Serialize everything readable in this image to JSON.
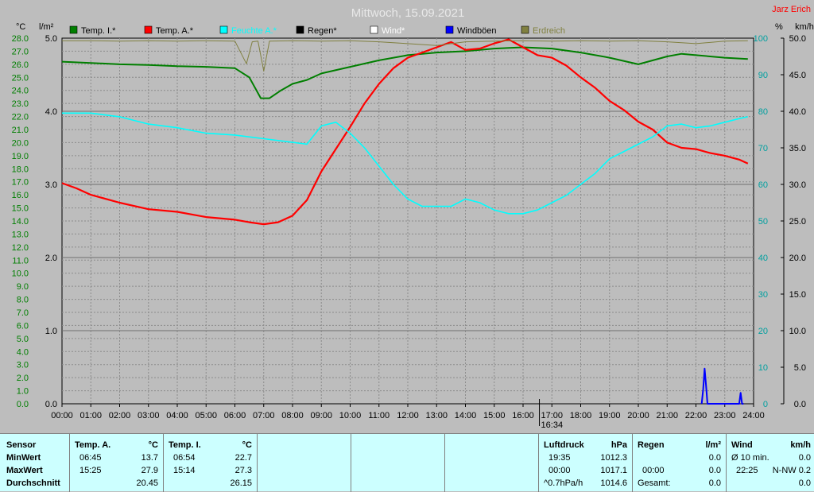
{
  "header": {
    "title": "Mittwoch, 15.09.2021",
    "author": "Jarz Erich",
    "unit_temp": "°C",
    "unit_rain": "l/m²",
    "unit_pct": "%",
    "unit_wind": "km/h",
    "time_marker": "16:34"
  },
  "colors": {
    "background": "#bdbdbd",
    "grid": "#8c8c8c",
    "temp_i": "#007f00",
    "temp_a": "#ff0000",
    "feuchte": "#00ffff",
    "regen": "#000000",
    "wind": "#ffffff",
    "windboeen": "#0000ff",
    "erdreich": "#808040",
    "axis_temp": "#007f00",
    "axis_pct": "#00a0a0",
    "axis_wind": "#000000",
    "title": "#e8e8e8",
    "author": "#ff0000"
  },
  "chart_data": {
    "type": "line",
    "x_unit": "hours",
    "xlim": [
      0,
      24
    ],
    "x_ticks": [
      "00:00",
      "01:00",
      "02:00",
      "03:00",
      "04:00",
      "05:00",
      "06:00",
      "07:00",
      "08:00",
      "09:00",
      "10:00",
      "11:00",
      "12:00",
      "13:00",
      "14:00",
      "15:00",
      "16:00",
      "17:00",
      "18:00",
      "19:00",
      "20:00",
      "21:00",
      "22:00",
      "23:00",
      "24:00"
    ],
    "axes": {
      "temp": {
        "label": "°C",
        "min": 0,
        "max": 28,
        "ticks": [
          "0.0",
          "1.0",
          "2.0",
          "3.0",
          "4.0",
          "5.0",
          "6.0",
          "7.0",
          "8.0",
          "9.0",
          "10.0",
          "11.0",
          "12.0",
          "13.0",
          "14.0",
          "15.0",
          "16.0",
          "17.0",
          "18.0",
          "19.0",
          "20.0",
          "21.0",
          "22.0",
          "23.0",
          "24.0",
          "25.0",
          "26.0",
          "27.0",
          "28.0"
        ]
      },
      "rain": {
        "label": "l/m²",
        "min": 0,
        "max": 5,
        "ticks": [
          "0.0",
          "1.0",
          "2.0",
          "3.0",
          "4.0",
          "5.0"
        ]
      },
      "pct": {
        "label": "%",
        "min": 0,
        "max": 100,
        "ticks": [
          "0",
          "10",
          "20",
          "30",
          "40",
          "50",
          "60",
          "70",
          "80",
          "90",
          "100"
        ]
      },
      "wind": {
        "label": "km/h",
        "min": 0,
        "max": 50,
        "ticks": [
          "0.0",
          "5.0",
          "10.0",
          "15.0",
          "20.0",
          "25.0",
          "30.0",
          "35.0",
          "40.0",
          "45.0",
          "50.0"
        ]
      }
    },
    "legend": [
      {
        "name": "Temp. I.*",
        "color": "#007f00"
      },
      {
        "name": "Temp. A.*",
        "color": "#ff0000"
      },
      {
        "name": "Feuchte A.*",
        "color": "#00ffff"
      },
      {
        "name": "Regen*",
        "color": "#000000"
      },
      {
        "name": "Wind*",
        "color": "#ffffff"
      },
      {
        "name": "Windböen",
        "color": "#0000ff"
      },
      {
        "name": "Erdreich",
        "color": "#808040"
      }
    ],
    "series": [
      {
        "name": "Temp. I.*",
        "axis": "temp",
        "color": "#007f00",
        "x": [
          0,
          1,
          2,
          3,
          4,
          5,
          6,
          6.5,
          6.9,
          7.2,
          7.6,
          8,
          8.5,
          9,
          10,
          11,
          12,
          13,
          14,
          15,
          16,
          17,
          18,
          19,
          20,
          21,
          21.5,
          22,
          23,
          23.8
        ],
        "y": [
          26.2,
          26.1,
          26.0,
          25.95,
          25.85,
          25.8,
          25.7,
          25.0,
          23.4,
          23.4,
          24.0,
          24.5,
          24.8,
          25.3,
          25.8,
          26.3,
          26.7,
          26.9,
          27.0,
          27.2,
          27.3,
          27.2,
          26.9,
          26.5,
          26.0,
          26.6,
          26.8,
          26.7,
          26.5,
          26.4
        ]
      },
      {
        "name": "Temp. A.*",
        "axis": "temp",
        "color": "#ff0000",
        "x": [
          0,
          0.5,
          1,
          2,
          3,
          4,
          5,
          6,
          6.5,
          7,
          7.5,
          8,
          8.5,
          9,
          9.5,
          10,
          10.5,
          11,
          11.5,
          12,
          12.5,
          13,
          13.5,
          14,
          14.5,
          15,
          15.5,
          16,
          16.5,
          17,
          17.5,
          18,
          18.5,
          19,
          19.5,
          20,
          20.5,
          21,
          21.5,
          22,
          22.5,
          23,
          23.5,
          23.8
        ],
        "y": [
          16.9,
          16.5,
          16.0,
          15.4,
          14.9,
          14.7,
          14.3,
          14.1,
          13.9,
          13.75,
          13.9,
          14.4,
          15.6,
          17.8,
          19.5,
          21.2,
          23.0,
          24.5,
          25.7,
          26.5,
          26.9,
          27.3,
          27.7,
          27.1,
          27.2,
          27.6,
          27.9,
          27.3,
          26.7,
          26.5,
          25.9,
          25.0,
          24.2,
          23.2,
          22.5,
          21.6,
          21.0,
          20.0,
          19.6,
          19.5,
          19.2,
          19.0,
          18.7,
          18.4
        ]
      },
      {
        "name": "Feuchte A.*",
        "axis": "pct",
        "color": "#00ffff",
        "x": [
          0,
          1,
          2,
          3,
          4,
          5,
          6,
          7,
          8,
          8.5,
          9,
          9.5,
          10,
          10.5,
          11,
          11.5,
          12,
          12.5,
          13,
          13.5,
          14,
          14.5,
          15,
          15.5,
          16,
          16.5,
          17,
          17.5,
          18,
          18.5,
          19,
          19.5,
          20,
          20.5,
          21,
          21.5,
          22,
          22.5,
          23,
          23.5,
          23.8
        ],
        "y": [
          79.5,
          79.5,
          78.5,
          76.5,
          75.5,
          74,
          73.5,
          72.5,
          71.5,
          71,
          76,
          77,
          74,
          70,
          65,
          60,
          56,
          54,
          54,
          54,
          56,
          55,
          53,
          52,
          52,
          53,
          55,
          57,
          60,
          63,
          67,
          69,
          71,
          73,
          76,
          76.5,
          75.5,
          76,
          77,
          78,
          78.5
        ]
      },
      {
        "name": "Erdreich",
        "axis": "pct",
        "color": "#808040",
        "x": [
          0,
          1,
          2,
          3,
          4,
          5,
          6,
          6.4,
          6.6,
          6.8,
          7.0,
          7.2,
          8,
          9,
          10,
          11,
          12,
          13,
          14,
          15,
          16,
          17,
          18,
          19,
          20,
          21,
          22,
          23,
          23.8
        ],
        "y": [
          99.3,
          99.3,
          99.2,
          99.3,
          99.2,
          99.3,
          99.2,
          93,
          99,
          99.2,
          91,
          99.2,
          99.3,
          99.2,
          99.3,
          99,
          98.5,
          98,
          99,
          99.2,
          99.3,
          99.2,
          99.3,
          99.2,
          99.3,
          99,
          98.5,
          99.2,
          99.3
        ]
      },
      {
        "name": "Windböen",
        "axis": "wind",
        "color": "#0000ff",
        "x": [
          22.2,
          22.25,
          22.3,
          22.35,
          22.4,
          22.45,
          22.5,
          23.5,
          23.55,
          23.6,
          23.65
        ],
        "y": [
          0,
          2.0,
          4.8,
          2.5,
          0,
          0,
          0,
          0,
          1.5,
          0,
          0
        ]
      }
    ]
  },
  "panel": {
    "sensor": {
      "label": "Sensor",
      "rows": [
        "MinWert",
        "MaxWert",
        "Durchschnitt"
      ]
    },
    "temp_a": {
      "label": "Temp. A.",
      "unit": "°C",
      "min_time": "06:45",
      "min_val": "13.7",
      "max_time": "15:25",
      "max_val": "27.9",
      "avg_val": "20.45"
    },
    "temp_i": {
      "label": "Temp. I.",
      "unit": "°C",
      "min_time": "06:54",
      "min_val": "22.7",
      "max_time": "15:14",
      "max_val": "27.3",
      "avg_val": "26.15"
    },
    "luftdruck": {
      "label": "Luftdruck",
      "unit": "hPa",
      "min_time": "19:35",
      "min_val": "1012.3",
      "max_time": "00:00",
      "max_val": "1017.1",
      "avg_label": "^0.7hPa/h",
      "avg_val": "1014.6"
    },
    "regen": {
      "label": "Regen",
      "unit": "l/m²",
      "min_val": "0.0",
      "max_time": "00:00",
      "max_val": "0.0",
      "avg_label": "Gesamt:",
      "avg_val": "0.0"
    },
    "wind": {
      "label": "Wind",
      "unit": "km/h",
      "min_label": "Ø 10 min.",
      "min_val": "0.0",
      "max_time": "22:25",
      "max_val": "N-NW 0.2",
      "avg_val": "0.0"
    }
  }
}
